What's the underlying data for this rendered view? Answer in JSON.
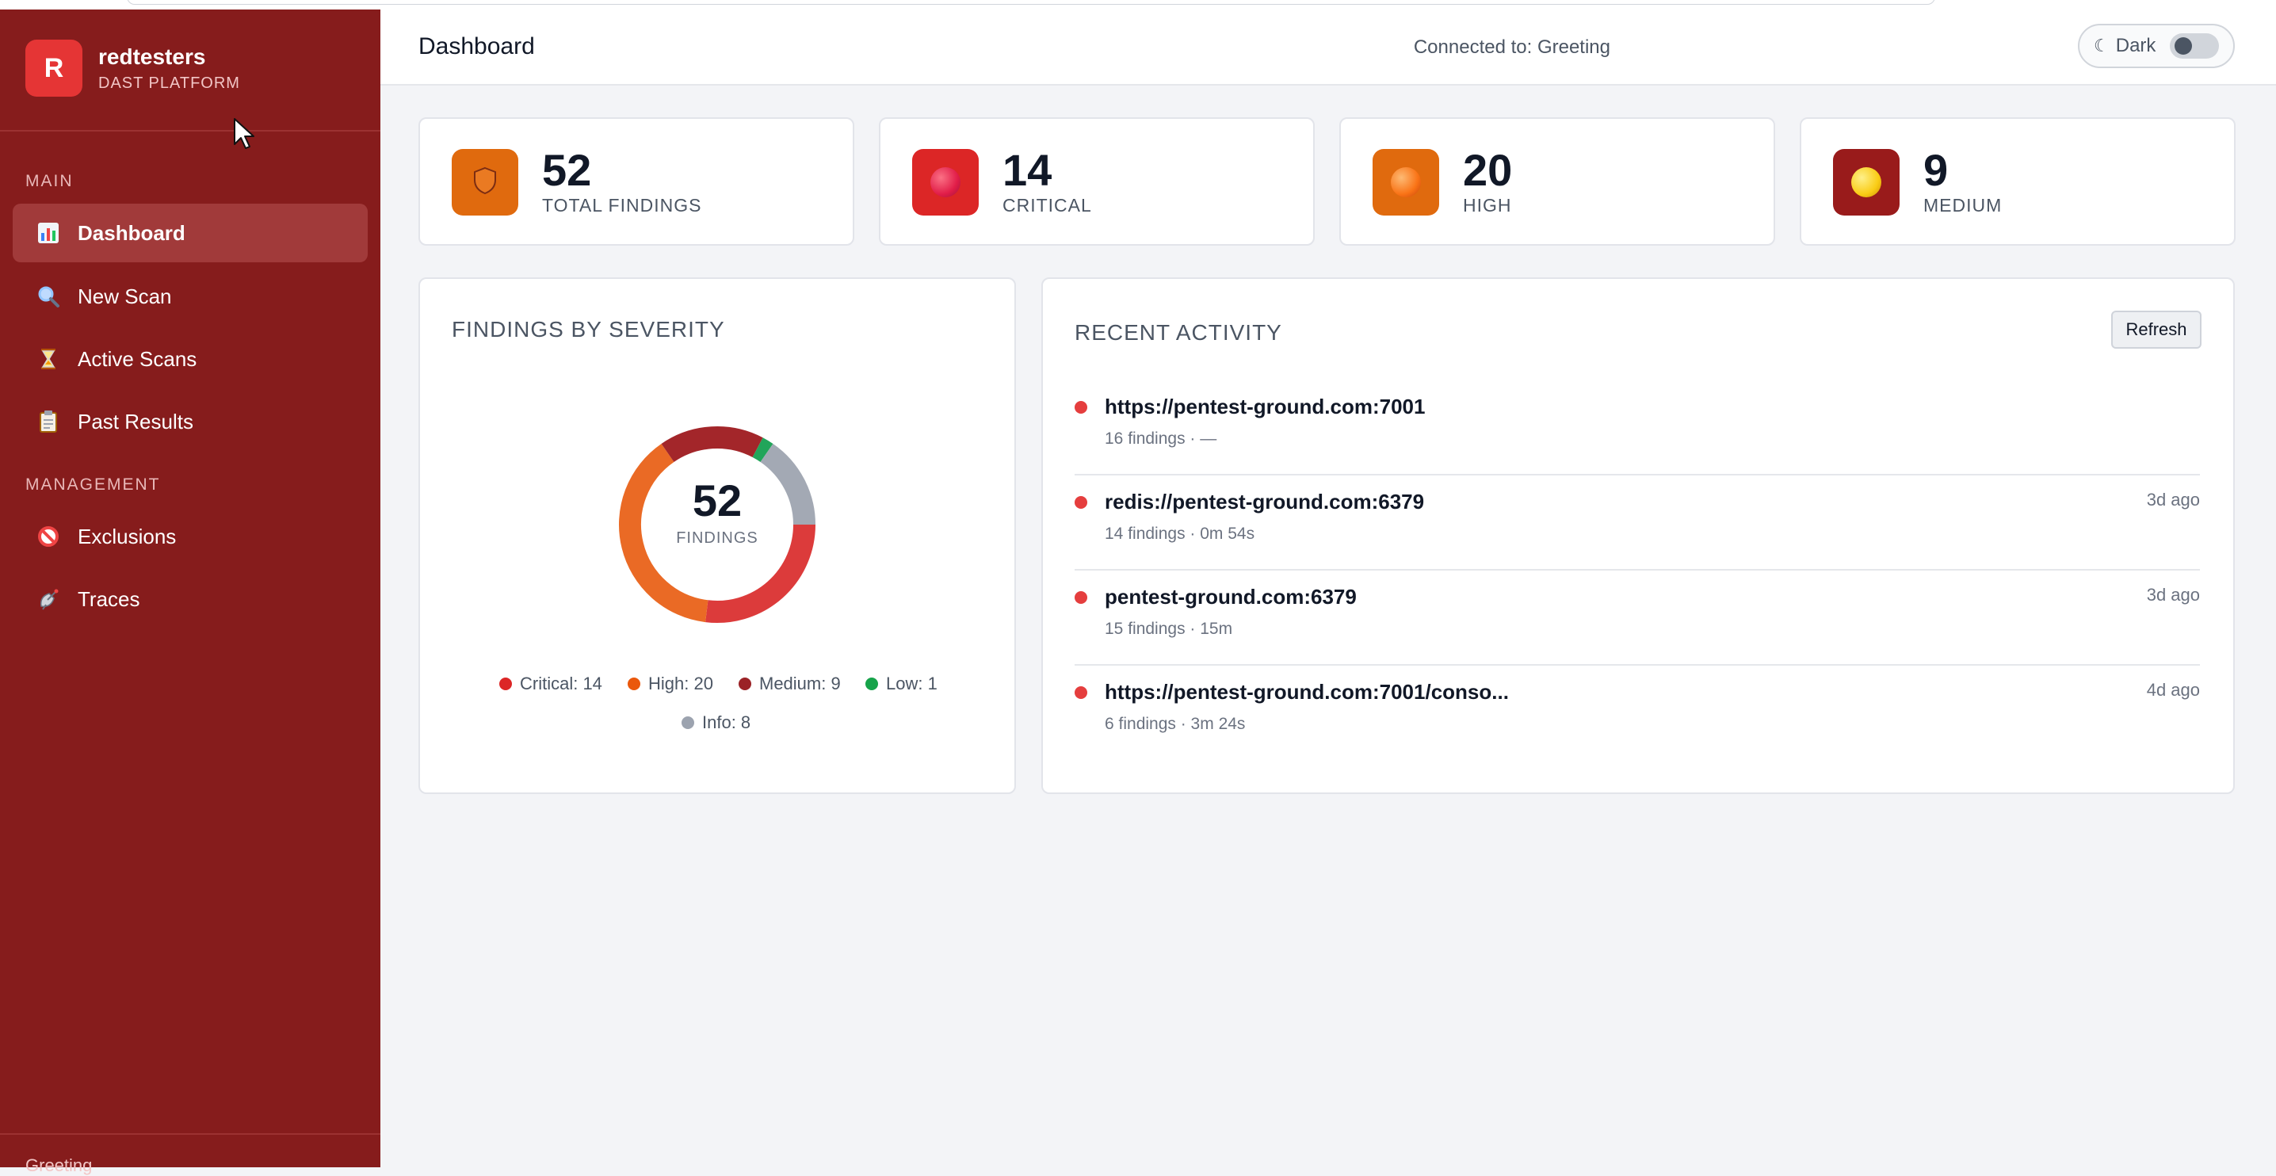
{
  "brand": {
    "logo_letter": "R",
    "name": "redtesters",
    "subtitle": "DAST PLATFORM"
  },
  "sidebar": {
    "sections": [
      {
        "label": "MAIN"
      },
      {
        "label": "MANAGEMENT"
      }
    ],
    "items": [
      {
        "label": "Dashboard",
        "icon": "bar-chart-icon",
        "active": true
      },
      {
        "label": "New Scan",
        "icon": "magnifier-icon"
      },
      {
        "label": "Active Scans",
        "icon": "hourglass-icon"
      },
      {
        "label": "Past Results",
        "icon": "clipboard-icon"
      },
      {
        "label": "Exclusions",
        "icon": "prohibited-icon"
      },
      {
        "label": "Traces",
        "icon": "satellite-icon"
      }
    ],
    "footer": "Greeting"
  },
  "header": {
    "title": "Dashboard",
    "connection": "Connected to: Greeting",
    "theme_toggle_label": "Dark",
    "theme_toggle_icon": "moon-icon",
    "theme_dark_on": false
  },
  "stats": [
    {
      "value": "52",
      "label": "TOTAL FINDINGS",
      "color": "#e06a0e",
      "icon": "shield-icon"
    },
    {
      "value": "14",
      "label": "CRITICAL",
      "color": "#dc2626",
      "icon": "red-circle-icon"
    },
    {
      "value": "20",
      "label": "HIGH",
      "color": "#e06a0e",
      "icon": "orange-circle-icon"
    },
    {
      "value": "9",
      "label": "MEDIUM",
      "color": "#991b1b",
      "icon": "yellow-circle-icon"
    }
  ],
  "severity_panel": {
    "title": "FINDINGS BY SEVERITY",
    "center_value": "52",
    "center_label": "FINDINGS",
    "legend": [
      {
        "label": "Critical: 14",
        "color": "#dc2626"
      },
      {
        "label": "High: 20",
        "color": "#ea580c"
      },
      {
        "label": "Medium: 9",
        "color": "#9b2226"
      },
      {
        "label": "Low: 1",
        "color": "#16a34a"
      },
      {
        "label": "Info: 8",
        "color": "#9ca3af"
      }
    ]
  },
  "chart_data": {
    "type": "pie",
    "donut": true,
    "categories": [
      "Critical",
      "High",
      "Medium",
      "Low",
      "Info"
    ],
    "values": [
      14,
      20,
      9,
      1,
      8
    ],
    "colors": [
      "#dc3b3b",
      "#ea6a25",
      "#a3262a",
      "#22a55a",
      "#a3a9b4"
    ],
    "start": "3 o'clock",
    "title": ""
  },
  "activity_panel": {
    "title": "RECENT ACTIVITY",
    "refresh_label": "Refresh",
    "items": [
      {
        "url": "https://pentest-ground.com:7001",
        "meta": "16 findings · —",
        "when": ""
      },
      {
        "url": "redis://pentest-ground.com:6379",
        "meta": "14 findings · 0m 54s",
        "when": "3d ago"
      },
      {
        "url": "pentest-ground.com:6379",
        "meta": "15 findings · 15m",
        "when": "3d ago"
      },
      {
        "url": "https://pentest-ground.com:7001/conso...",
        "meta": "6 findings · 3m 24s",
        "when": "4d ago"
      }
    ]
  }
}
